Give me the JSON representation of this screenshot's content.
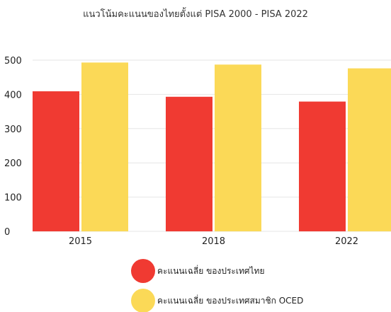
{
  "chart_data": {
    "type": "bar",
    "title": "แนวโน้มคะแนนของไทยตั้งแต่ PISA 2000 - PISA 2022",
    "xlabel": "",
    "ylabel": "",
    "categories": [
      "2015",
      "2018",
      "2022"
    ],
    "series": [
      {
        "name": "คะแนนเฉลี่ย ของประเทศไทย",
        "values": [
          409,
          393,
          379
        ],
        "color": "#f03a32"
      },
      {
        "name": "คะแนนเฉลี่ย ของประเทศสมาชิก OCED",
        "values": [
          493,
          487,
          476
        ],
        "color": "#fbd957"
      }
    ],
    "ylim": [
      0,
      500
    ],
    "yticks": [
      "0",
      "100",
      "200",
      "300",
      "400",
      "500"
    ],
    "grid": true,
    "legend_position": "bottom"
  }
}
